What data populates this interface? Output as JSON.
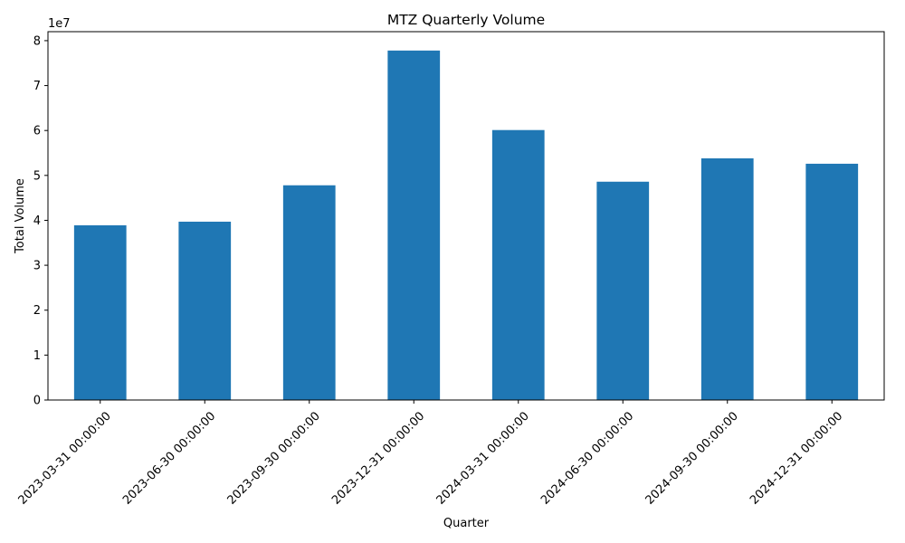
{
  "chart_data": {
    "type": "bar",
    "title": "MTZ Quarterly Volume",
    "xlabel": "Quarter",
    "ylabel": "Total Volume",
    "y_offset_label": "1e7",
    "categories": [
      "2023-03-31 00:00:00",
      "2023-06-30 00:00:00",
      "2023-09-30 00:00:00",
      "2023-12-31 00:00:00",
      "2024-03-31 00:00:00",
      "2024-06-30 00:00:00",
      "2024-09-30 00:00:00",
      "2024-12-31 00:00:00"
    ],
    "series": [
      {
        "values": [
          38900000,
          39700000,
          47800000,
          77800000,
          60100000,
          48600000,
          53800000,
          52600000
        ]
      }
    ],
    "ylim": [
      0,
      82000000
    ],
    "yticks": [
      0,
      10000000,
      20000000,
      30000000,
      40000000,
      50000000,
      60000000,
      70000000,
      80000000
    ],
    "ytick_labels": [
      "0",
      "1",
      "2",
      "3",
      "4",
      "5",
      "6",
      "7",
      "8"
    ],
    "bar_color": "#1f77b4",
    "grid": false,
    "legend": "none"
  }
}
